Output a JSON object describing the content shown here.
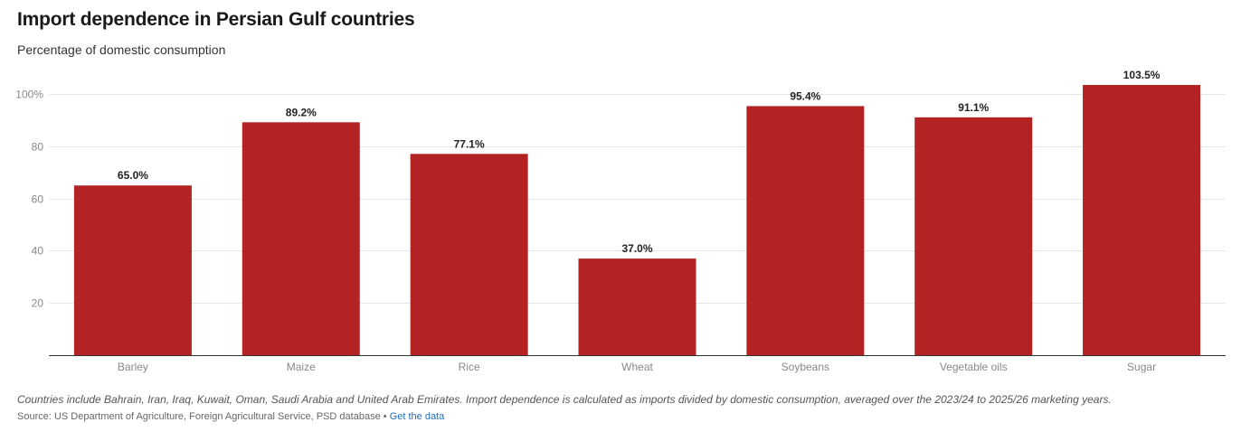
{
  "header": {
    "title": "Import dependence in Persian Gulf countries",
    "subtitle": "Percentage of domestic consumption"
  },
  "colors": {
    "bar": "#b42323",
    "grid": "#e6e6e6",
    "axis": "#333333",
    "tick_label": "#888888",
    "data_label": "#222222"
  },
  "chart_data": {
    "type": "bar",
    "title": "Import dependence in Persian Gulf countries",
    "subtitle": "Percentage of domestic consumption",
    "xlabel": "",
    "ylabel": "",
    "categories": [
      "Barley",
      "Maize",
      "Rice",
      "Wheat",
      "Soybeans",
      "Vegetable oils",
      "Sugar"
    ],
    "values": [
      65.0,
      89.2,
      77.1,
      37.0,
      95.4,
      91.1,
      103.5
    ],
    "data_labels": [
      "65.0%",
      "89.2%",
      "77.1%",
      "37.0%",
      "95.4%",
      "91.1%",
      "103.5%"
    ],
    "ylim": [
      0,
      103.5
    ],
    "yticks": [
      20,
      40,
      60,
      80,
      100
    ],
    "ytick_labels": [
      "20",
      "40",
      "60",
      "80",
      "100%"
    ],
    "grid": true,
    "legend": "none"
  },
  "footer": {
    "note": "Countries include Bahrain, Iran, Iraq, Kuwait, Oman, Saudi Arabia and United Arab Emirates. Import dependence is calculated as imports divided by domestic consumption, averaged over the 2023/24 to 2025/26 marketing years.",
    "source": "Source: US Department of Agriculture, Foreign Agricultural Service, PSD database",
    "separator": "•",
    "link_label": "Get the data"
  }
}
